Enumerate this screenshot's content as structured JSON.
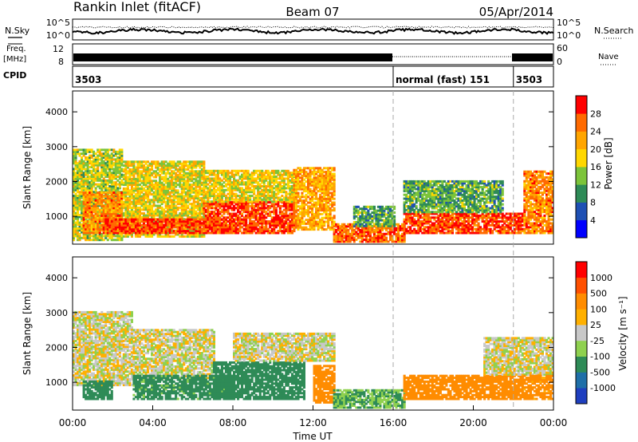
{
  "header": {
    "station": "Rankin Inlet (fitACF)",
    "beam": "Beam 07",
    "date": "05/Apr/2014"
  },
  "side_labels": {
    "nsky": "N.Sky",
    "nsearch": "N.Search",
    "freq": "Freq.",
    "freq_unit": "[MHz]",
    "nave": "Nave",
    "cpid": "CPID"
  },
  "small_panels": {
    "noise": {
      "left_ticks": [
        "10^5",
        "10^0"
      ],
      "right_ticks": [
        "10^5",
        "10^0"
      ]
    },
    "freq": {
      "left_ticks": [
        "12",
        "8"
      ],
      "right_ticks": [
        "60",
        "0"
      ]
    }
  },
  "cpid_segments": [
    {
      "label": "3503",
      "start_h": 0,
      "end_h": 16
    },
    {
      "label": "normal (fast) 151",
      "start_h": 16,
      "end_h": 22
    },
    {
      "label": "3503",
      "start_h": 22,
      "end_h": 24
    }
  ],
  "chart_data": [
    {
      "type": "heatmap",
      "name": "power",
      "ylabel": "Slant Range [km]",
      "xlabel": "",
      "ylim": [
        200,
        4600
      ],
      "yticks": [
        1000,
        2000,
        3000,
        4000
      ],
      "colorbar": {
        "label": "Power [dB]",
        "ticks": [
          "4",
          "8",
          "12",
          "16",
          "20",
          "24",
          "28"
        ],
        "colors": [
          "#0000ff",
          "#1e50b4",
          "#2e8b57",
          "#7cc43a",
          "#ffd700",
          "#ffa500",
          "#ff6a00",
          "#ff0000"
        ]
      },
      "regions": [
        {
          "t0": 0.0,
          "t1": 2.5,
          "r0": 300,
          "r1": 2900,
          "v": 16
        },
        {
          "t0": 0.5,
          "t1": 2.5,
          "r0": 500,
          "r1": 1700,
          "v": 24
        },
        {
          "t0": 2.5,
          "t1": 6.5,
          "r0": 400,
          "r1": 2600,
          "v": 18
        },
        {
          "t0": 1.5,
          "t1": 8.0,
          "r0": 500,
          "r1": 900,
          "v": 28
        },
        {
          "t0": 6.5,
          "t1": 11.0,
          "r0": 500,
          "r1": 1400,
          "v": 28
        },
        {
          "t0": 6.5,
          "t1": 11.0,
          "r0": 1400,
          "r1": 2300,
          "v": 18
        },
        {
          "t0": 11.0,
          "t1": 13.0,
          "r0": 600,
          "r1": 2400,
          "v": 22
        },
        {
          "t0": 13.0,
          "t1": 16.5,
          "r0": 250,
          "r1": 750,
          "v": 26
        },
        {
          "t0": 14.0,
          "t1": 16.0,
          "r0": 700,
          "r1": 1300,
          "v": 12
        },
        {
          "t0": 16.5,
          "t1": 22.5,
          "r0": 500,
          "r1": 1100,
          "v": 28
        },
        {
          "t0": 16.5,
          "t1": 21.5,
          "r0": 1100,
          "r1": 2000,
          "v": 12
        },
        {
          "t0": 22.5,
          "t1": 24.0,
          "r0": 500,
          "r1": 2300,
          "v": 24
        }
      ]
    },
    {
      "type": "heatmap",
      "name": "velocity",
      "ylabel": "Slant Range [km]",
      "xlabel": "Time UT",
      "ylim": [
        200,
        4600
      ],
      "yticks": [
        1000,
        2000,
        3000,
        4000
      ],
      "xticks": [
        "00:00",
        "04:00",
        "08:00",
        "12:00",
        "16:00",
        "20:00",
        "00:00"
      ],
      "colorbar": {
        "label": "Velocity [m s⁻¹]",
        "ticks": [
          "1000",
          "500",
          "100",
          "25",
          "-25",
          "-100",
          "-500",
          "-1000"
        ],
        "colors": [
          "#1f3fbf",
          "#1f6fa8",
          "#2e8b57",
          "#8fd14f",
          "#c8c8c8",
          "#ffb000",
          "#ff8c00",
          "#ff5000",
          "#ff0000"
        ]
      },
      "regions": [
        {
          "t0": 0.0,
          "t1": 3.0,
          "r0": 900,
          "r1": 3000,
          "v": 0
        },
        {
          "t0": 0.5,
          "t1": 2.0,
          "r0": 500,
          "r1": 1000,
          "v": 200
        },
        {
          "t0": 3.0,
          "t1": 7.0,
          "r0": 1100,
          "r1": 2500,
          "v": 0
        },
        {
          "t0": 3.0,
          "t1": 8.0,
          "r0": 500,
          "r1": 1200,
          "v": 150
        },
        {
          "t0": 7.0,
          "t1": 11.5,
          "r0": 500,
          "r1": 1600,
          "v": 200
        },
        {
          "t0": 8.0,
          "t1": 13.0,
          "r0": 1600,
          "r1": 2400,
          "v": 0
        },
        {
          "t0": 12.0,
          "t1": 13.0,
          "r0": 400,
          "r1": 1500,
          "v": -200
        },
        {
          "t0": 13.0,
          "t1": 16.5,
          "r0": 250,
          "r1": 800,
          "v": 100
        },
        {
          "t0": 16.5,
          "t1": 22.5,
          "r0": 500,
          "r1": 1200,
          "v": -200
        },
        {
          "t0": 20.5,
          "t1": 24.0,
          "r0": 1200,
          "r1": 2300,
          "v": 0
        },
        {
          "t0": 22.5,
          "t1": 24.0,
          "r0": 500,
          "r1": 1200,
          "v": -150
        }
      ]
    }
  ]
}
